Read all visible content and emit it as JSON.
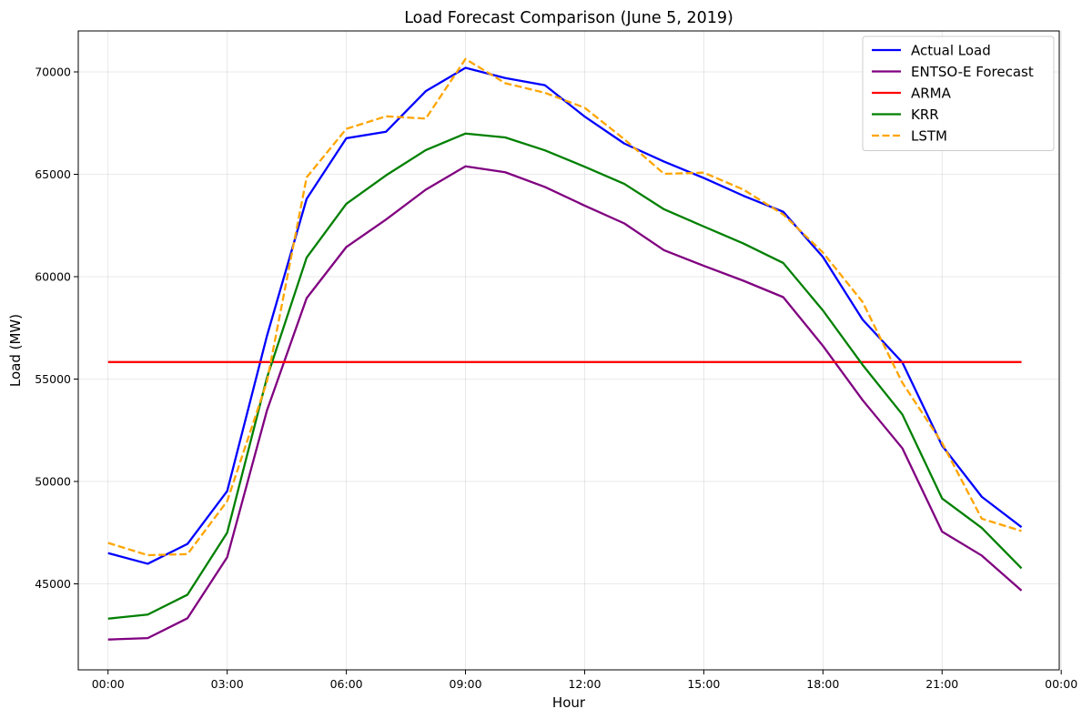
{
  "chart_data": {
    "type": "line",
    "title": "Load Forecast Comparison (June 5, 2019)",
    "xlabel": "Hour",
    "ylabel": "Load (MW)",
    "x_hours": [
      0,
      1,
      2,
      3,
      4,
      5,
      6,
      7,
      8,
      9,
      10,
      11,
      12,
      13,
      14,
      15,
      16,
      17,
      18,
      19,
      20,
      21,
      22,
      23
    ],
    "xlim": [
      -0.75,
      23.95
    ],
    "ylim": [
      40800,
      72000
    ],
    "xticks": [
      0,
      3,
      6,
      9,
      12,
      15,
      18,
      21,
      24
    ],
    "xtick_labels": [
      "00:00",
      "03:00",
      "06:00",
      "09:00",
      "12:00",
      "15:00",
      "18:00",
      "21:00",
      "00:00"
    ],
    "yticks": [
      45000,
      50000,
      55000,
      60000,
      65000,
      70000
    ],
    "ytick_labels": [
      "45000",
      "50000",
      "55000",
      "60000",
      "65000",
      "70000"
    ],
    "grid": true,
    "legend_position": "top-right",
    "series": [
      {
        "name": "Actual Load",
        "color": "#0000ff",
        "dash": "solid",
        "values": [
          46500,
          45980,
          46950,
          49530,
          57100,
          63800,
          66760,
          67080,
          69060,
          70200,
          69700,
          69350,
          67820,
          66500,
          65620,
          64820,
          63950,
          63170,
          60960,
          57900,
          55810,
          51750,
          49250,
          47770
        ]
      },
      {
        "name": "ENTSO-E Forecast",
        "color": "#800080",
        "dash": "solid",
        "values": [
          42280,
          42350,
          43320,
          46300,
          53460,
          58950,
          61450,
          62790,
          64250,
          65390,
          65100,
          64380,
          63470,
          62600,
          61290,
          60530,
          59800,
          59000,
          56620,
          53970,
          51620,
          47550,
          46380,
          44670
        ]
      },
      {
        "name": "ARMA",
        "color": "#ff0000",
        "dash": "solid",
        "values": [
          55830,
          55830,
          55830,
          55830,
          55830,
          55830,
          55830,
          55830,
          55830,
          55830,
          55830,
          55830,
          55830,
          55830,
          55830,
          55830,
          55830,
          55830,
          55830,
          55830,
          55830,
          55830,
          55830,
          55830
        ]
      },
      {
        "name": "KRR",
        "color": "#008000",
        "dash": "solid",
        "values": [
          43300,
          43500,
          44470,
          47500,
          55060,
          60930,
          63560,
          64950,
          66180,
          66990,
          66800,
          66170,
          65370,
          64530,
          63290,
          62450,
          61620,
          60670,
          58350,
          55690,
          53270,
          49170,
          47730,
          45760
        ]
      },
      {
        "name": "LSTM",
        "color": "#ffa500",
        "dash": "dashed",
        "values": [
          47000,
          46400,
          46450,
          49040,
          54870,
          64850,
          67220,
          67830,
          67720,
          70630,
          69450,
          68980,
          68250,
          66710,
          65020,
          65080,
          64250,
          63040,
          61180,
          58760,
          54820,
          51880,
          48180,
          47580
        ]
      }
    ]
  }
}
